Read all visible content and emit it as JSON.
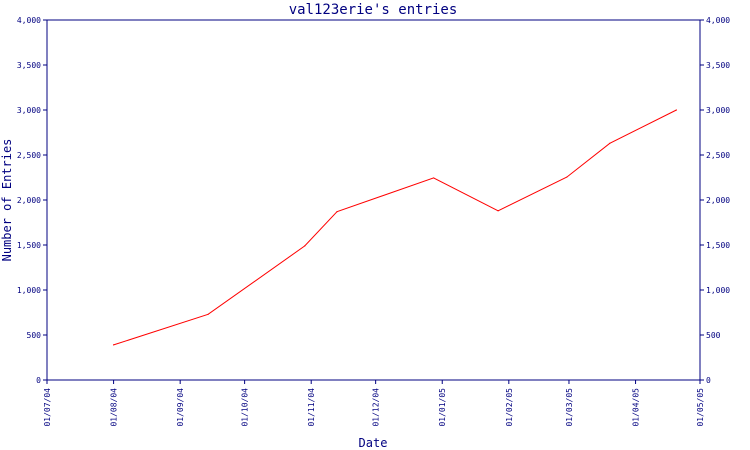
{
  "chart_data": {
    "type": "line",
    "title": "val123erie's entries",
    "xlabel": "Date",
    "ylabel": "Number of Entries",
    "ylim": [
      0,
      4000
    ],
    "y_ticks": [
      "0",
      "500",
      "1,000",
      "1,500",
      "2,000",
      "2,500",
      "3,000",
      "3,500",
      "4,000"
    ],
    "x_ticks": [
      "01/07/04",
      "01/08/04",
      "01/09/04",
      "01/10/04",
      "01/11/04",
      "01/12/04",
      "01/01/05",
      "01/02/05",
      "01/03/05",
      "01/04/05",
      "01/05/05"
    ],
    "grid": false,
    "series": [
      {
        "color": "#ff0000",
        "points": [
          {
            "x": "2004-08-01",
            "y": 390
          },
          {
            "x": "2004-09-14",
            "y": 730
          },
          {
            "x": "2004-10-29",
            "y": 1490
          },
          {
            "x": "2004-11-13",
            "y": 1870
          },
          {
            "x": "2004-12-28",
            "y": 2245
          },
          {
            "x": "2005-01-27",
            "y": 1880
          },
          {
            "x": "2005-02-28",
            "y": 2255
          },
          {
            "x": "2005-03-20",
            "y": 2630
          },
          {
            "x": "2005-04-20",
            "y": 3000
          }
        ]
      }
    ]
  },
  "colors": {
    "axis": "#000080",
    "line": "#ff0000",
    "background": "#ffffff"
  }
}
